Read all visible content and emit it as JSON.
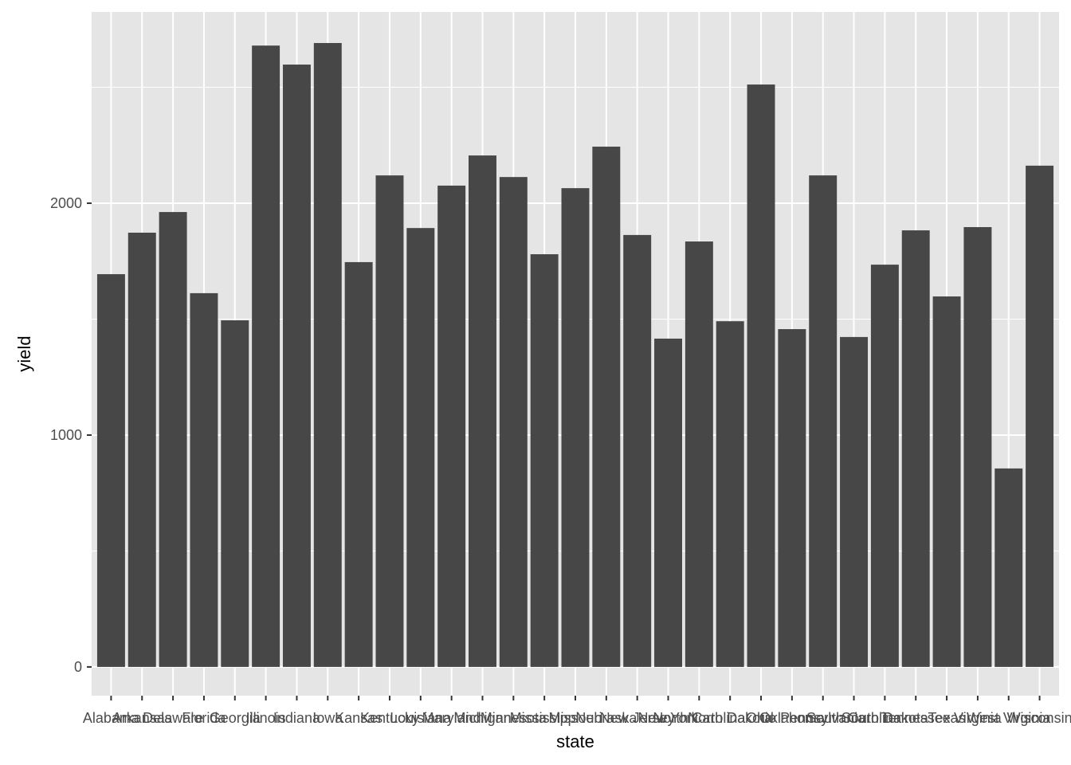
{
  "chart_data": {
    "type": "bar",
    "x_label": "state",
    "y_label": "yield",
    "categories": [
      "Alabama",
      "Arkansas",
      "Delaware",
      "Florida",
      "Georgia",
      "Illinois",
      "Indiana",
      "Iowa",
      "Kansas",
      "Kentucky",
      "Louisiana",
      "Maryland",
      "Michigan",
      "Minnesota",
      "Mississippi",
      "Missouri",
      "Nebraska",
      "New Jersey",
      "New York",
      "North Carolina",
      "North Dakota",
      "Ohio",
      "Oklahoma",
      "Pennsylvania",
      "South Carolina",
      "South Dakota",
      "Tennessee",
      "Texas",
      "Virginia",
      "West Virginia",
      "Wisconsin"
    ],
    "values": [
      1694,
      1873,
      1962,
      1612,
      1495,
      2680,
      2598,
      2691,
      1746,
      2120,
      1893,
      2076,
      2206,
      2113,
      1780,
      2065,
      2244,
      1863,
      1416,
      1835,
      1491,
      2512,
      1457,
      2120,
      1423,
      1735,
      1883,
      1598,
      1897,
      856,
      2162
    ],
    "color": "#474747",
    "ylim": [
      -124,
      2825
    ],
    "yticks": [
      0,
      1000,
      2000
    ],
    "minor_yticks": [
      500,
      1500,
      2500
    ],
    "grid": true,
    "panel_color": "#e5e5e5"
  }
}
